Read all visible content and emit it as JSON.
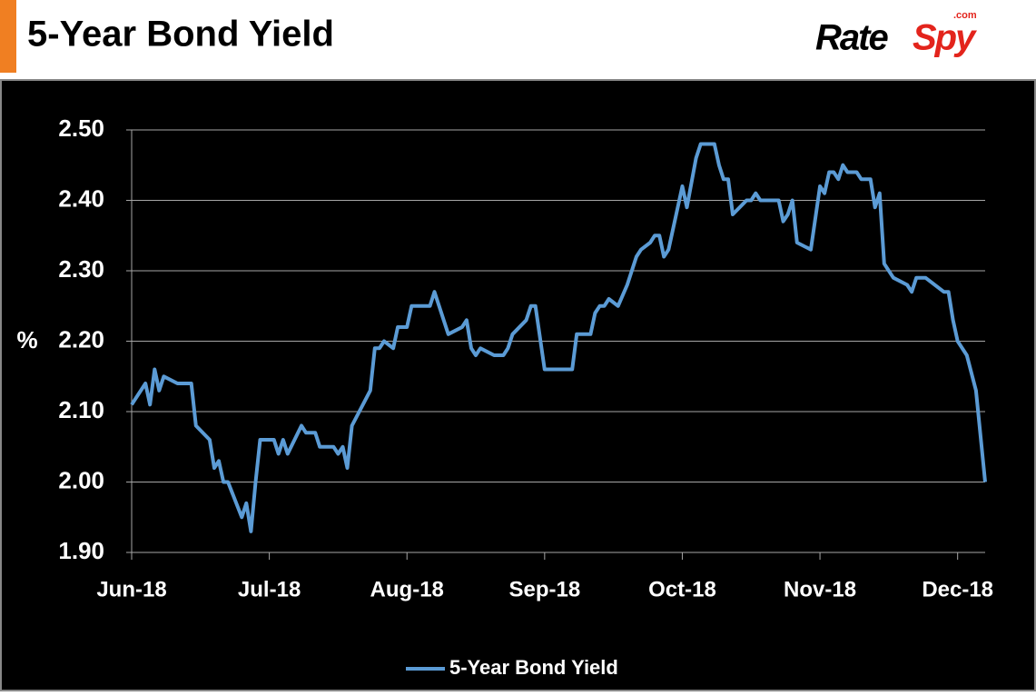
{
  "header": {
    "logo_left": "Rate",
    "logo_right": "Spy",
    "logo_domain": ".com"
  },
  "chart_data": {
    "type": "line",
    "title": "5-Year Bond Yield",
    "y_label": "%",
    "x": [
      0,
      3,
      4,
      5,
      6,
      7,
      10,
      13,
      14,
      17,
      18,
      19,
      20,
      21,
      24,
      25,
      26,
      27,
      28,
      31,
      32,
      33,
      34,
      37,
      38,
      40,
      41,
      44,
      45,
      46,
      47,
      48,
      52,
      53,
      54,
      55,
      57,
      58,
      60,
      61,
      65,
      66,
      67,
      69,
      72,
      73,
      74,
      75,
      76,
      79,
      81,
      82,
      83,
      86,
      87,
      88,
      90,
      96,
      97,
      100,
      101,
      102,
      103,
      104,
      106,
      108,
      110,
      111,
      113,
      114,
      115,
      116,
      117,
      120,
      121,
      123,
      124,
      127,
      128,
      129,
      130,
      131,
      134,
      135,
      136,
      137,
      141,
      142,
      143,
      144,
      145,
      148,
      150,
      151,
      152,
      153,
      154,
      155,
      156,
      158,
      159,
      161,
      162,
      163,
      164,
      166,
      169,
      170,
      171,
      173,
      177,
      178,
      179,
      180,
      182,
      184,
      186
    ],
    "series": [
      {
        "name": "5-Year Bond Yield",
        "color": "#5b9bd5",
        "values": [
          2.11,
          2.14,
          2.11,
          2.16,
          2.13,
          2.15,
          2.14,
          2.14,
          2.08,
          2.06,
          2.02,
          2.03,
          2.0,
          2.0,
          1.95,
          1.97,
          1.93,
          2.0,
          2.06,
          2.06,
          2.04,
          2.06,
          2.04,
          2.08,
          2.07,
          2.07,
          2.05,
          2.05,
          2.04,
          2.05,
          2.02,
          2.08,
          2.13,
          2.19,
          2.19,
          2.2,
          2.19,
          2.22,
          2.22,
          2.25,
          2.25,
          2.27,
          2.25,
          2.21,
          2.22,
          2.23,
          2.19,
          2.18,
          2.19,
          2.18,
          2.18,
          2.19,
          2.21,
          2.23,
          2.25,
          2.25,
          2.16,
          2.16,
          2.21,
          2.21,
          2.24,
          2.25,
          2.25,
          2.26,
          2.25,
          2.28,
          2.32,
          2.33,
          2.34,
          2.35,
          2.35,
          2.32,
          2.33,
          2.42,
          2.39,
          2.46,
          2.48,
          2.48,
          2.45,
          2.43,
          2.43,
          2.38,
          2.4,
          2.4,
          2.41,
          2.4,
          2.4,
          2.37,
          2.38,
          2.4,
          2.34,
          2.33,
          2.42,
          2.41,
          2.44,
          2.44,
          2.43,
          2.45,
          2.44,
          2.44,
          2.43,
          2.43,
          2.39,
          2.41,
          2.31,
          2.29,
          2.28,
          2.27,
          2.29,
          2.29,
          2.27,
          2.27,
          2.23,
          2.2,
          2.18,
          2.13,
          2.0
        ]
      }
    ],
    "xlim": [
      0,
      186
    ],
    "xticks": [
      {
        "value": 0,
        "label": "Jun-18"
      },
      {
        "value": 30,
        "label": "Jul-18"
      },
      {
        "value": 60,
        "label": "Aug-18"
      },
      {
        "value": 90,
        "label": "Sep-18"
      },
      {
        "value": 120,
        "label": "Oct-18"
      },
      {
        "value": 150,
        "label": "Nov-18"
      },
      {
        "value": 180,
        "label": "Dec-18"
      }
    ],
    "ylim": [
      1.9,
      2.5
    ],
    "yticks": [
      {
        "value": 1.9,
        "label": "1.90"
      },
      {
        "value": 2.0,
        "label": "2.00"
      },
      {
        "value": 2.1,
        "label": "2.10"
      },
      {
        "value": 2.2,
        "label": "2.20"
      },
      {
        "value": 2.3,
        "label": "2.30"
      },
      {
        "value": 2.4,
        "label": "2.40"
      },
      {
        "value": 2.5,
        "label": "2.50"
      }
    ],
    "grid": true,
    "legend": "bottom"
  }
}
